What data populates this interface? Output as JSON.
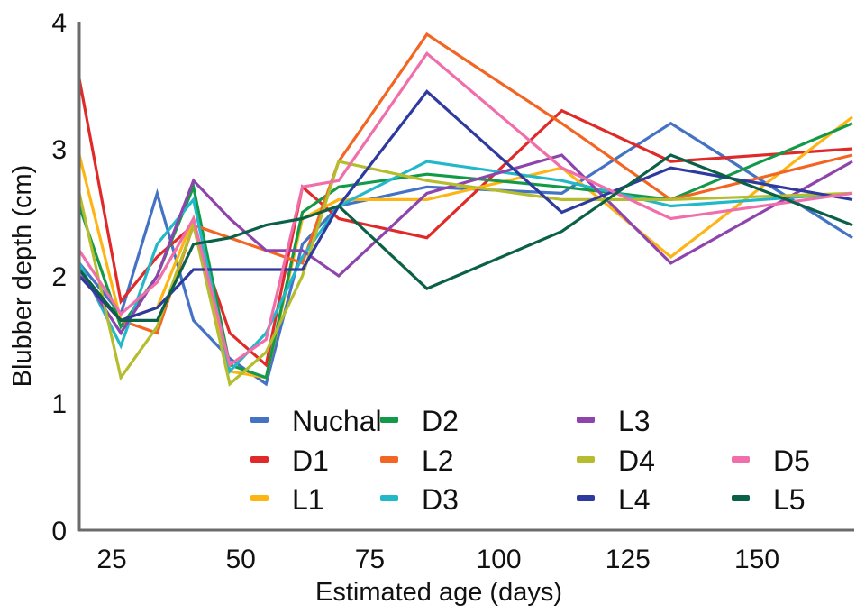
{
  "chart_data": {
    "type": "line",
    "title": "",
    "xlabel": "Estimated age (days)",
    "ylabel": "Blubber depth (cm)",
    "xlim": [
      19,
      168
    ],
    "ylim": [
      0,
      4
    ],
    "xticks": [
      25,
      50,
      75,
      100,
      125,
      150
    ],
    "yticks": [
      0,
      1,
      2,
      3,
      4
    ],
    "grid": false,
    "legend_position": "bottom-right (inside plot)",
    "x": [
      19,
      27,
      34,
      41,
      48,
      55,
      62,
      69,
      86,
      112,
      133,
      168
    ],
    "series": [
      {
        "name": "Nuchal",
        "color": "#4472C4",
        "values": [
          2.1,
          1.7,
          2.65,
          1.65,
          1.35,
          1.15,
          2.25,
          2.55,
          2.7,
          2.65,
          3.2,
          2.3
        ]
      },
      {
        "name": "D1",
        "color": "#E02A2A",
        "values": [
          3.55,
          1.8,
          2.15,
          2.4,
          1.55,
          1.3,
          2.7,
          2.45,
          2.3,
          3.3,
          2.9,
          3.0
        ]
      },
      {
        "name": "L1",
        "color": "#FDB515",
        "values": [
          2.95,
          1.65,
          1.75,
          2.45,
          1.25,
          1.2,
          2.45,
          2.6,
          2.6,
          2.85,
          2.15,
          3.25
        ]
      },
      {
        "name": "D2",
        "color": "#139A48",
        "values": [
          2.55,
          1.6,
          2.0,
          2.7,
          1.3,
          1.2,
          2.5,
          2.7,
          2.8,
          2.7,
          2.6,
          3.2
        ]
      },
      {
        "name": "L2",
        "color": "#F26522",
        "values": [
          2.0,
          1.65,
          1.55,
          2.4,
          2.3,
          2.2,
          2.1,
          2.9,
          3.9,
          3.2,
          2.6,
          2.95
        ]
      },
      {
        "name": "D3",
        "color": "#22B8C8",
        "values": [
          2.1,
          1.45,
          2.25,
          2.6,
          1.25,
          1.55,
          2.15,
          2.55,
          2.9,
          2.75,
          2.55,
          2.65
        ]
      },
      {
        "name": "L3",
        "color": "#8E44AD",
        "values": [
          2.05,
          1.55,
          2.0,
          2.75,
          2.45,
          2.2,
          2.2,
          2.0,
          2.65,
          2.95,
          2.1,
          2.9
        ]
      },
      {
        "name": "D4",
        "color": "#B5BD2E",
        "values": [
          2.65,
          1.2,
          1.6,
          2.4,
          1.15,
          1.4,
          2.0,
          2.9,
          2.75,
          2.6,
          2.6,
          2.65
        ]
      },
      {
        "name": "L4",
        "color": "#2E3A9E",
        "values": [
          2.0,
          1.65,
          1.75,
          2.05,
          2.05,
          2.05,
          2.05,
          2.55,
          3.45,
          2.5,
          2.85,
          2.6
        ]
      },
      {
        "name": "D5",
        "color": "#F06EAA",
        "values": [
          2.2,
          1.7,
          1.95,
          2.45,
          1.3,
          1.5,
          2.7,
          2.75,
          3.75,
          2.85,
          2.45,
          2.65
        ]
      },
      {
        "name": "L5",
        "color": "#0B6048",
        "values": [
          2.05,
          1.65,
          1.65,
          2.25,
          2.3,
          2.4,
          2.45,
          2.55,
          1.9,
          2.35,
          2.95,
          2.4
        ]
      }
    ],
    "legend_layout": [
      [
        "Nuchal",
        "D2",
        "L3",
        null
      ],
      [
        "D1",
        "L2",
        "D4",
        "D5"
      ],
      [
        "L1",
        "D3",
        "L4",
        "L5"
      ]
    ]
  }
}
